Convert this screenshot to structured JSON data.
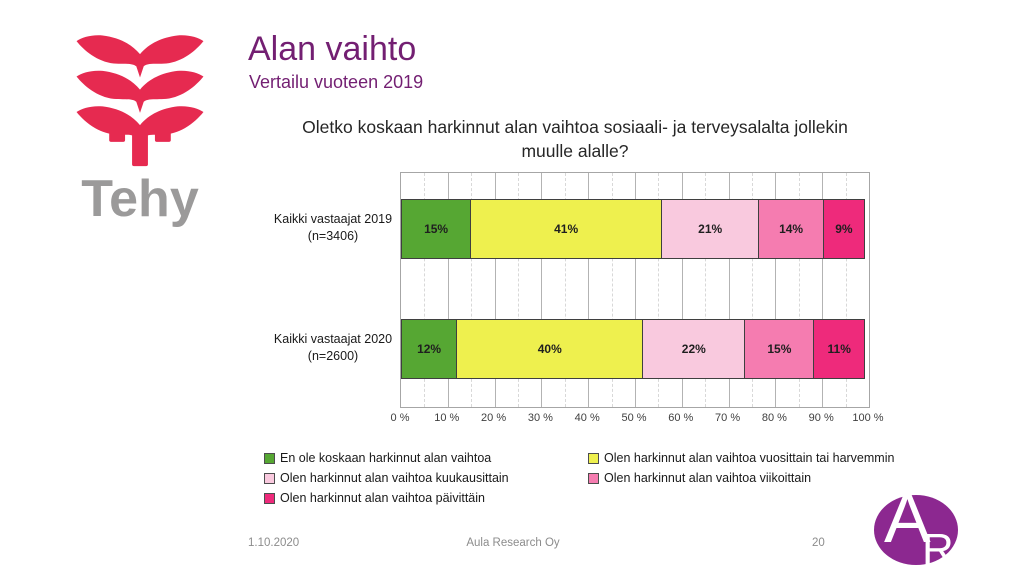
{
  "slide": {
    "title": "Alan vaihto",
    "subtitle": "Vertailu vuoteen 2019",
    "logo_text": "Tehy",
    "footer": {
      "date": "1.10.2020",
      "source": "Aula Research Oy",
      "page": "20"
    },
    "ar_logo": {
      "letter_a": "A",
      "letter_r": "R"
    },
    "colors": {
      "title_purple": "#731f72",
      "tehy_red": "#e62a50",
      "logo_gray": "#9b9a9a",
      "ar_purple": "#8c2890"
    }
  },
  "chart_data": {
    "type": "bar",
    "orientation": "horizontal",
    "stacked": true,
    "title": "Oletko koskaan harkinnut alan vaihtoa sosiaali- ja terveysalalta jollekin muulle alalle?",
    "categories": [
      {
        "line1": "Kaikki vastaajat 2019",
        "line2": "(n=3406)"
      },
      {
        "line1": "Kaikki vastaajat 2020",
        "line2": "(n=2600)"
      }
    ],
    "series": [
      {
        "name": "En ole koskaan harkinnut alan vaihtoa",
        "color": "#56a733",
        "values": [
          15,
          12
        ]
      },
      {
        "name": "Olen harkinnut alan vaihtoa vuosittain tai harvemmin",
        "color": "#eef04e",
        "values": [
          41,
          40
        ]
      },
      {
        "name": "Olen harkinnut alan vaihtoa kuukausittain",
        "color": "#f9c9de",
        "values": [
          21,
          22
        ]
      },
      {
        "name": "Olen harkinnut alan vaihtoa viikoittain",
        "color": "#f57cb0",
        "values": [
          14,
          15
        ]
      },
      {
        "name": "Olen harkinnut alan vaihtoa päivittäin",
        "color": "#ee2a7b",
        "values": [
          9,
          11
        ]
      }
    ],
    "value_suffix": "%",
    "x_ticks": [
      "0 %",
      "10 %",
      "20 %",
      "30 %",
      "40 %",
      "50 %",
      "60 %",
      "70 %",
      "80 %",
      "90 %",
      "100 %"
    ],
    "xlim": [
      0,
      100
    ],
    "grid": true,
    "legend_position": "bottom",
    "legend_columns": [
      [
        0,
        2,
        4
      ],
      [
        1,
        3
      ]
    ]
  }
}
